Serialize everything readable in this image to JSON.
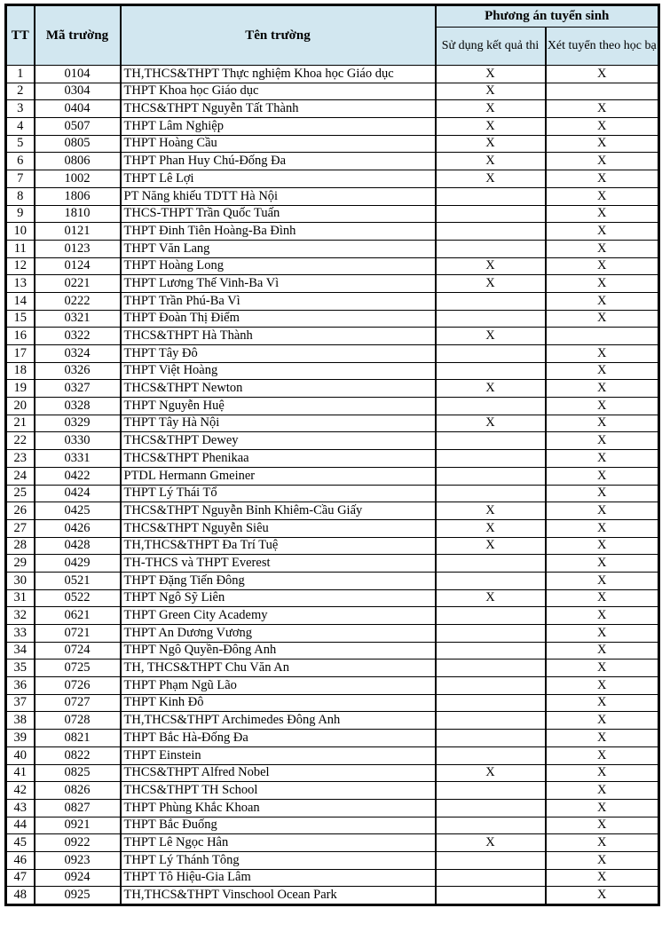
{
  "colors": {
    "header_bg": "#d2e7f0",
    "border": "#000000",
    "text": "#000000",
    "page_bg": "#ffffff"
  },
  "table": {
    "headers": {
      "tt": "TT",
      "code": "Mã trường",
      "name": "Tên trường",
      "group": "Phương án tuyển sinh",
      "exam": "Sử dụng kết quả thi",
      "transcript": "Xét tuyển theo học bạ"
    },
    "mark": "X",
    "rows": [
      {
        "tt": "1",
        "code": "0104",
        "name": "TH,THCS&THPT Thực nghiệm Khoa học Giáo dục",
        "exam": "X",
        "transcript": "X"
      },
      {
        "tt": "2",
        "code": "0304",
        "name": "THPT Khoa học Giáo dục",
        "exam": "X",
        "transcript": ""
      },
      {
        "tt": "3",
        "code": "0404",
        "name": "THCS&THPT Nguyễn Tất Thành",
        "exam": "X",
        "transcript": "X"
      },
      {
        "tt": "4",
        "code": "0507",
        "name": "THPT Lâm Nghiệp",
        "exam": "X",
        "transcript": "X"
      },
      {
        "tt": "5",
        "code": "0805",
        "name": "THPT Hoàng Cầu",
        "exam": "X",
        "transcript": "X"
      },
      {
        "tt": "6",
        "code": "0806",
        "name": "THPT Phan Huy Chú-Đống Đa",
        "exam": "X",
        "transcript": "X"
      },
      {
        "tt": "7",
        "code": "1002",
        "name": "THPT Lê Lợi",
        "exam": "X",
        "transcript": "X"
      },
      {
        "tt": "8",
        "code": "1806",
        "name": "PT Năng khiếu TDTT Hà Nội",
        "exam": "",
        "transcript": "X"
      },
      {
        "tt": "9",
        "code": "1810",
        "name": "THCS-THPT Trần Quốc Tuấn",
        "exam": "",
        "transcript": "X"
      },
      {
        "tt": "10",
        "code": "0121",
        "name": "THPT Đinh Tiên Hoàng-Ba Đình",
        "exam": "",
        "transcript": "X"
      },
      {
        "tt": "11",
        "code": "0123",
        "name": "THPT Văn Lang",
        "exam": "",
        "transcript": "X"
      },
      {
        "tt": "12",
        "code": "0124",
        "name": "THPT Hoàng Long",
        "exam": "X",
        "transcript": "X"
      },
      {
        "tt": "13",
        "code": "0221",
        "name": "THPT Lương Thế Vinh-Ba Vì",
        "exam": "X",
        "transcript": "X"
      },
      {
        "tt": "14",
        "code": "0222",
        "name": "THPT Trần Phú-Ba Vì",
        "exam": "",
        "transcript": "X"
      },
      {
        "tt": "15",
        "code": "0321",
        "name": "THPT Đoàn Thị Điểm",
        "exam": "",
        "transcript": "X"
      },
      {
        "tt": "16",
        "code": "0322",
        "name": "THCS&THPT Hà Thành",
        "exam": "X",
        "transcript": ""
      },
      {
        "tt": "17",
        "code": "0324",
        "name": "THPT Tây Đô",
        "exam": "",
        "transcript": "X"
      },
      {
        "tt": "18",
        "code": "0326",
        "name": "THPT Việt Hoàng",
        "exam": "",
        "transcript": "X"
      },
      {
        "tt": "19",
        "code": "0327",
        "name": "THCS&THPT Newton",
        "exam": "X",
        "transcript": "X"
      },
      {
        "tt": "20",
        "code": "0328",
        "name": "THPT Nguyễn Huệ",
        "exam": "",
        "transcript": "X"
      },
      {
        "tt": "21",
        "code": "0329",
        "name": "THPT Tây Hà Nội",
        "exam": "X",
        "transcript": "X"
      },
      {
        "tt": "22",
        "code": "0330",
        "name": "THCS&THPT Dewey",
        "exam": "",
        "transcript": "X"
      },
      {
        "tt": "23",
        "code": "0331",
        "name": "THCS&THPT Phenikaa",
        "exam": "",
        "transcript": "X"
      },
      {
        "tt": "24",
        "code": "0422",
        "name": "PTDL Hermann Gmeiner",
        "exam": "",
        "transcript": "X"
      },
      {
        "tt": "25",
        "code": "0424",
        "name": "THPT Lý Thái Tổ",
        "exam": "",
        "transcript": "X"
      },
      {
        "tt": "26",
        "code": "0425",
        "name": "THCS&THPT Nguyễn Bỉnh Khiêm-Cầu Giấy",
        "exam": "X",
        "transcript": "X"
      },
      {
        "tt": "27",
        "code": "0426",
        "name": "THCS&THPT Nguyễn Siêu",
        "exam": "X",
        "transcript": "X"
      },
      {
        "tt": "28",
        "code": "0428",
        "name": "TH,THCS&THPT Đa Trí Tuệ",
        "exam": "X",
        "transcript": "X"
      },
      {
        "tt": "29",
        "code": "0429",
        "name": "TH-THCS và THPT Everest",
        "exam": "",
        "transcript": "X"
      },
      {
        "tt": "30",
        "code": "0521",
        "name": "THPT Đặng Tiến Đông",
        "exam": "",
        "transcript": "X"
      },
      {
        "tt": "31",
        "code": "0522",
        "name": "THPT Ngô Sỹ Liên",
        "exam": "X",
        "transcript": "X"
      },
      {
        "tt": "32",
        "code": "0621",
        "name": "THPT Green City Academy",
        "exam": "",
        "transcript": "X"
      },
      {
        "tt": "33",
        "code": "0721",
        "name": "THPT An Dương Vương",
        "exam": "",
        "transcript": "X"
      },
      {
        "tt": "34",
        "code": "0724",
        "name": "THPT Ngô Quyền-Đông Anh",
        "exam": "",
        "transcript": "X"
      },
      {
        "tt": "35",
        "code": "0725",
        "name": "TH, THCS&THPT Chu Văn An",
        "exam": "",
        "transcript": "X"
      },
      {
        "tt": "36",
        "code": "0726",
        "name": "THPT Phạm Ngũ Lão",
        "exam": "",
        "transcript": "X"
      },
      {
        "tt": "37",
        "code": "0727",
        "name": "THPT Kinh Đô",
        "exam": "",
        "transcript": "X"
      },
      {
        "tt": "38",
        "code": "0728",
        "name": "TH,THCS&THPT Archimedes Đông Anh",
        "exam": "",
        "transcript": "X"
      },
      {
        "tt": "39",
        "code": "0821",
        "name": "THPT Bắc Hà-Đống Đa",
        "exam": "",
        "transcript": "X"
      },
      {
        "tt": "40",
        "code": "0822",
        "name": "THPT Einstein",
        "exam": "",
        "transcript": "X"
      },
      {
        "tt": "41",
        "code": "0825",
        "name": "THCS&THPT Alfred Nobel",
        "exam": "X",
        "transcript": "X"
      },
      {
        "tt": "42",
        "code": "0826",
        "name": "THCS&THPT TH School",
        "exam": "",
        "transcript": "X"
      },
      {
        "tt": "43",
        "code": "0827",
        "name": "THPT Phùng Khắc Khoan",
        "exam": "",
        "transcript": "X"
      },
      {
        "tt": "44",
        "code": "0921",
        "name": "THPT Bắc Đuống",
        "exam": "",
        "transcript": "X"
      },
      {
        "tt": "45",
        "code": "0922",
        "name": "THPT Lê Ngọc Hân",
        "exam": "X",
        "transcript": "X"
      },
      {
        "tt": "46",
        "code": "0923",
        "name": "THPT Lý Thánh Tông",
        "exam": "",
        "transcript": "X"
      },
      {
        "tt": "47",
        "code": "0924",
        "name": "THPT Tô Hiệu-Gia Lâm",
        "exam": "",
        "transcript": "X"
      },
      {
        "tt": "48",
        "code": "0925",
        "name": "TH,THCS&THPT Vinschool Ocean Park",
        "exam": "",
        "transcript": "X"
      }
    ]
  }
}
